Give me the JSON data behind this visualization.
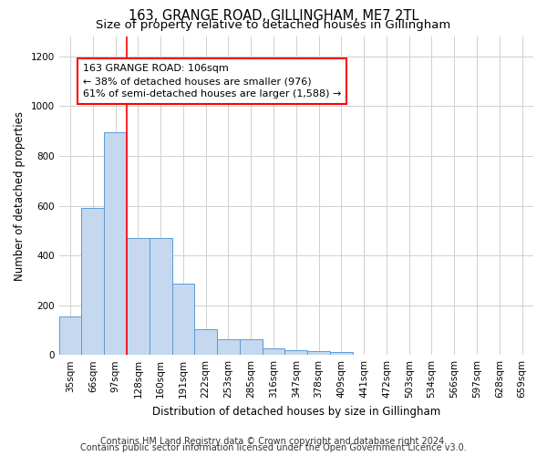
{
  "title1": "163, GRANGE ROAD, GILLINGHAM, ME7 2TL",
  "title2": "Size of property relative to detached houses in Gillingham",
  "xlabel": "Distribution of detached houses by size in Gillingham",
  "ylabel": "Number of detached properties",
  "footer1": "Contains HM Land Registry data © Crown copyright and database right 2024.",
  "footer2": "Contains public sector information licensed under the Open Government Licence v3.0.",
  "categories": [
    "35sqm",
    "66sqm",
    "97sqm",
    "128sqm",
    "160sqm",
    "191sqm",
    "222sqm",
    "253sqm",
    "285sqm",
    "316sqm",
    "347sqm",
    "378sqm",
    "409sqm",
    "441sqm",
    "472sqm",
    "503sqm",
    "534sqm",
    "566sqm",
    "597sqm",
    "628sqm",
    "659sqm"
  ],
  "values": [
    155,
    590,
    895,
    470,
    470,
    285,
    105,
    63,
    63,
    28,
    20,
    15,
    13,
    0,
    0,
    0,
    0,
    0,
    0,
    0,
    0
  ],
  "bar_color": "#c5d8f0",
  "bar_edge_color": "#5b9bd5",
  "grid_color": "#d0d0d0",
  "annotation_box_text": "163 GRANGE ROAD: 106sqm\n← 38% of detached houses are smaller (976)\n61% of semi-detached houses are larger (1,588) →",
  "property_line_x": 2.5,
  "ylim": [
    0,
    1280
  ],
  "yticks": [
    0,
    200,
    400,
    600,
    800,
    1000,
    1200
  ],
  "background_color": "#ffffff",
  "title1_fontsize": 10.5,
  "title2_fontsize": 9.5,
  "xlabel_fontsize": 8.5,
  "ylabel_fontsize": 8.5,
  "tick_fontsize": 7.5,
  "annotation_fontsize": 8,
  "footer_fontsize": 7
}
